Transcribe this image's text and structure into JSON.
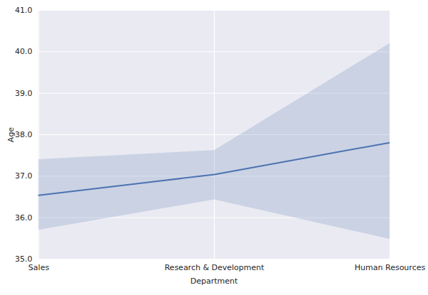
{
  "chart_data": {
    "type": "line",
    "x_label": "Department",
    "y_label": "Age",
    "categories": [
      "Sales",
      "Research & Development",
      "Human Resources"
    ],
    "values": [
      36.54,
      37.04,
      37.81
    ],
    "ci_low": [
      35.7,
      36.43,
      35.48
    ],
    "ci_high": [
      37.4,
      37.62,
      40.2
    ],
    "color": "#4c72b0",
    "ylim": [
      35,
      41
    ],
    "yticks": [
      35,
      36,
      37,
      38,
      39,
      40,
      41
    ],
    "grid": true
  }
}
